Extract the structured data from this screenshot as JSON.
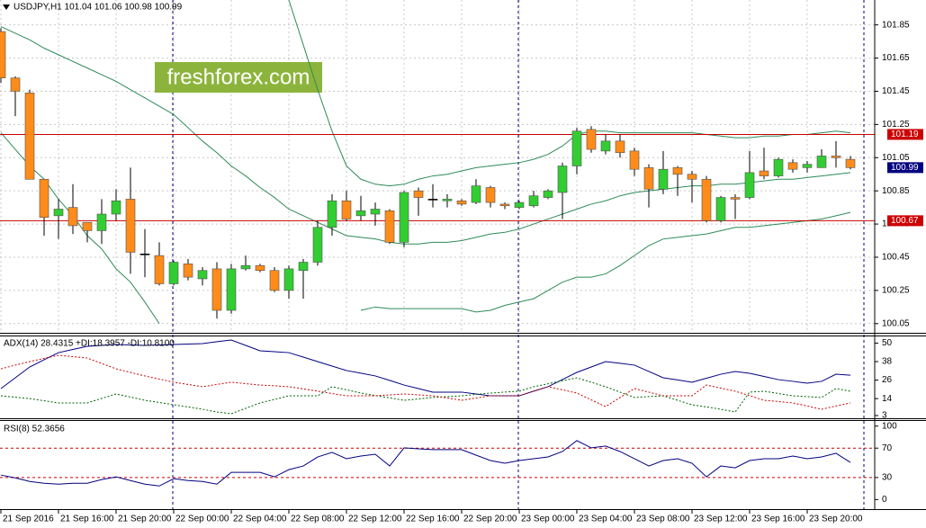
{
  "chart_data": [
    {
      "type": "candlestick",
      "title": "USDJPY,H1  101.04 101.06 100.98 100.99",
      "watermark": "freshforex.com",
      "categories": [
        "21 Sep 2016",
        null,
        null,
        null,
        "21 Sep 16:00",
        null,
        null,
        null,
        "21 Sep 20:00",
        null,
        null,
        null,
        "22 Sep 00:00",
        null,
        null,
        null,
        "22 Sep 04:00",
        null,
        null,
        null,
        "22 Sep 08:00",
        null,
        null,
        null,
        "22 Sep 12:00",
        null,
        null,
        null,
        "22 Sep 16:00",
        null,
        null,
        null,
        "22 Sep 20:00",
        null,
        null,
        null,
        "23 Sep 00:00",
        null,
        null,
        null,
        "23 Sep 04:00",
        null,
        null,
        null,
        "23 Sep 08:00",
        null,
        null,
        null,
        "23 Sep 12:00",
        null,
        null,
        null,
        "23 Sep 16:00",
        null,
        null,
        null,
        "23 Sep 20:00",
        null,
        null,
        null
      ],
      "open": [
        101.81,
        101.53,
        101.44,
        100.92,
        100.7,
        100.75,
        100.66,
        100.61,
        100.71,
        100.8,
        100.47,
        100.46,
        100.29,
        100.41,
        100.32,
        100.38,
        100.13,
        100.38,
        100.4,
        100.37,
        100.25,
        100.37,
        100.42,
        100.63,
        100.79,
        100.7,
        100.71,
        100.73,
        100.54,
        100.85,
        100.8,
        100.79,
        100.79,
        100.78,
        100.87,
        100.77,
        100.75,
        100.76,
        100.81,
        100.84,
        101.0,
        101.22,
        101.09,
        101.15,
        101.09,
        100.99,
        100.86,
        100.99,
        100.95,
        100.92,
        100.67,
        100.81,
        100.81,
        100.97,
        100.94,
        101.02,
        100.99,
        100.99,
        101.06,
        101.04
      ],
      "high": [
        101.83,
        101.54,
        101.46,
        100.92,
        100.8,
        100.89,
        100.66,
        100.8,
        100.86,
        100.99,
        100.62,
        100.54,
        100.43,
        100.44,
        100.39,
        100.42,
        100.41,
        100.46,
        100.41,
        100.39,
        100.4,
        100.44,
        100.67,
        100.83,
        100.85,
        100.82,
        100.78,
        100.74,
        100.85,
        100.87,
        100.89,
        100.83,
        100.8,
        100.92,
        100.88,
        100.78,
        100.79,
        100.85,
        100.86,
        101.02,
        101.23,
        101.24,
        101.19,
        101.19,
        101.11,
        101.01,
        101.09,
        101.0,
        100.97,
        100.94,
        100.82,
        100.83,
        101.09,
        101.11,
        101.05,
        101.04,
        101.03,
        101.1,
        101.15,
        101.06
      ],
      "low": [
        101.5,
        101.3,
        100.92,
        100.58,
        100.56,
        100.59,
        100.54,
        100.53,
        100.67,
        100.35,
        100.33,
        100.28,
        100.28,
        100.31,
        100.28,
        100.08,
        100.11,
        100.37,
        100.36,
        100.24,
        100.2,
        100.2,
        100.4,
        100.58,
        100.67,
        100.67,
        100.64,
        100.53,
        100.51,
        100.7,
        100.75,
        100.75,
        100.76,
        100.77,
        100.75,
        100.74,
        100.74,
        100.75,
        100.8,
        100.68,
        100.95,
        101.08,
        101.07,
        101.05,
        100.94,
        100.75,
        100.83,
        100.82,
        100.78,
        100.66,
        100.66,
        100.68,
        100.8,
        100.92,
        100.93,
        100.96,
        100.96,
        100.99,
        100.99,
        100.98
      ],
      "close": [
        101.53,
        101.45,
        100.92,
        100.69,
        100.74,
        100.64,
        100.61,
        100.71,
        100.79,
        100.48,
        100.47,
        100.29,
        100.42,
        100.33,
        100.37,
        100.13,
        100.38,
        100.4,
        100.37,
        100.25,
        100.38,
        100.42,
        100.63,
        100.79,
        100.68,
        100.73,
        100.74,
        100.54,
        100.84,
        100.81,
        100.8,
        100.8,
        100.77,
        100.88,
        100.78,
        100.76,
        100.78,
        100.82,
        100.85,
        101.0,
        101.21,
        101.1,
        101.15,
        101.08,
        100.98,
        100.86,
        100.98,
        100.95,
        100.92,
        100.67,
        100.81,
        100.8,
        100.96,
        100.94,
        101.04,
        100.98,
        101.01,
        101.06,
        101.05,
        100.99
      ],
      "up_color": "#32cd32",
      "down_color": "#ff8c1a",
      "wick_color": "#000000",
      "bands": [
        {
          "color": "#2e8b57",
          "values": [
            null,
            null,
            null,
            null,
            null,
            null,
            null,
            null,
            null,
            null,
            null,
            null,
            null,
            null,
            null,
            null,
            null,
            null,
            null,
            null,
            102.0,
            101.73,
            101.46,
            101.21,
            101.0,
            100.92,
            100.89,
            100.88,
            100.89,
            100.92,
            100.94,
            100.95,
            100.97,
            100.99,
            101.0,
            101.01,
            101.02,
            101.04,
            101.07,
            101.12,
            101.19,
            101.21,
            101.21,
            101.2,
            101.2,
            101.2,
            101.2,
            101.2,
            101.2,
            101.19,
            101.18,
            101.17,
            101.17,
            101.18,
            101.18,
            101.19,
            101.19,
            101.2,
            101.21,
            101.2
          ]
        },
        {
          "color": "#2e8b57",
          "values": [
            101.84,
            101.8,
            101.76,
            101.71,
            101.67,
            101.63,
            101.59,
            101.55,
            101.51,
            101.46,
            101.41,
            101.36,
            101.31,
            101.23,
            101.15,
            101.08,
            101.0,
            100.94,
            100.87,
            100.81,
            100.74,
            100.7,
            100.66,
            100.62,
            100.58,
            100.57,
            100.56,
            100.54,
            100.53,
            100.53,
            100.54,
            100.54,
            100.55,
            100.57,
            100.59,
            100.6,
            100.62,
            100.65,
            100.68,
            100.71,
            100.74,
            100.77,
            100.79,
            100.82,
            100.84,
            100.85,
            100.86,
            100.87,
            100.88,
            100.88,
            100.89,
            100.89,
            100.9,
            100.91,
            100.92,
            100.92,
            100.93,
            100.94,
            100.95,
            100.96
          ]
        },
        {
          "color": "#2e8b57",
          "values": [
            101.2,
            101.1,
            101.0,
            100.92,
            100.8,
            100.7,
            100.58,
            100.5,
            100.38,
            100.3,
            100.18,
            100.05,
            null,
            null,
            null,
            null,
            null,
            null,
            null,
            null,
            null,
            null,
            null,
            null,
            null,
            100.13,
            100.15,
            100.14,
            100.14,
            100.14,
            100.14,
            100.14,
            100.14,
            100.12,
            100.13,
            100.16,
            100.18,
            100.2,
            100.25,
            100.3,
            100.33,
            100.33,
            100.35,
            100.4,
            100.46,
            100.52,
            100.56,
            100.57,
            100.58,
            100.59,
            100.61,
            100.63,
            100.63,
            100.64,
            100.65,
            100.66,
            100.67,
            100.68,
            100.7,
            100.72
          ]
        }
      ],
      "hlines": [
        {
          "value": 101.19,
          "color": "#cc0000"
        },
        {
          "value": 100.67,
          "color": "#cc0000"
        }
      ],
      "last_price": 100.99,
      "last_price_color": "#000080",
      "ylim": [
        100.0,
        102.0
      ],
      "yticks": [
        101.85,
        101.65,
        101.45,
        101.25,
        101.05,
        100.85,
        100.65,
        100.45,
        100.25,
        100.05
      ],
      "grid": true
    },
    {
      "type": "line",
      "title": "ADX(14) 28.4315 +DI:18.3957 -DI:10.8100",
      "series": [
        {
          "color": "#000080",
          "dashed": false,
          "values": [
            20.5,
            27.5,
            34.5,
            39.2,
            43.8,
            45.9,
            47.9,
            48.5,
            49.1,
            48.8,
            48.5,
            48.8,
            49.1,
            49.4,
            49.7,
            50.9,
            52.0,
            48.5,
            45.0,
            44.4,
            43.8,
            40.9,
            38.0,
            35.1,
            32.2,
            30.5,
            28.7,
            25.8,
            22.8,
            20.5,
            18.2,
            18.2,
            18.2,
            17.0,
            15.8,
            15.8,
            15.8,
            18.8,
            21.7,
            26.4,
            31.0,
            34.5,
            38.0,
            36.9,
            35.7,
            31.6,
            27.5,
            26.1,
            24.6,
            27.2,
            29.8,
            31.6,
            30.4,
            28.4,
            26.3,
            25.2,
            24.0,
            25.2,
            29.8,
            29.2
          ]
        },
        {
          "color": "#006400",
          "dashed": true,
          "values": [
            15.8,
            14.9,
            14.0,
            12.6,
            11.2,
            11.2,
            11.2,
            14.1,
            17.0,
            15.0,
            12.9,
            11.5,
            10.0,
            8.6,
            7.1,
            5.3,
            4.2,
            7.7,
            11.2,
            13.5,
            15.8,
            15.8,
            15.8,
            21.7,
            19.7,
            17.6,
            16.0,
            14.5,
            12.9,
            13.8,
            14.7,
            15.3,
            15.8,
            16.7,
            17.6,
            18.2,
            18.8,
            21.7,
            23.6,
            25.6,
            27.5,
            24.6,
            21.7,
            18.2,
            14.7,
            15.3,
            15.8,
            12.9,
            10.0,
            8.6,
            7.1,
            5.3,
            18.2,
            18.8,
            17.3,
            15.8,
            15.3,
            14.7,
            20.5,
            18.8
          ]
        },
        {
          "color": "#cc0000",
          "dashed": true,
          "values": [
            33.3,
            35.7,
            38.0,
            40.1,
            42.1,
            41.2,
            40.3,
            36.8,
            33.3,
            31.0,
            28.7,
            26.7,
            24.6,
            23.2,
            21.7,
            23.2,
            24.6,
            23.7,
            22.8,
            22.3,
            21.7,
            20.3,
            18.8,
            17.3,
            15.8,
            15.8,
            15.8,
            16.4,
            17.0,
            16.4,
            15.8,
            14.4,
            12.9,
            14.4,
            15.8,
            15.8,
            15.8,
            18.8,
            21.7,
            19.7,
            17.6,
            13.2,
            8.8,
            14.7,
            20.5,
            18.2,
            15.8,
            15.8,
            15.8,
            22.8,
            20.8,
            18.8,
            15.9,
            12.9,
            12.1,
            11.2,
            9.2,
            7.1,
            9.2,
            11.2
          ]
        }
      ],
      "ylim": [
        3,
        52
      ],
      "yticks": [
        50,
        38,
        26,
        14,
        3
      ]
    },
    {
      "type": "line",
      "title": "RSI(8) 52.3656",
      "series": [
        {
          "color": "#000080",
          "dashed": false,
          "values": [
            33.3,
            29.6,
            24.7,
            22.2,
            21.0,
            22.2,
            22.2,
            27.2,
            30.9,
            25.9,
            21.0,
            18.5,
            28.4,
            25.9,
            24.7,
            21.0,
            37.0,
            37.0,
            37.0,
            30.9,
            40.7,
            45.7,
            58.0,
            64.2,
            55.6,
            59.3,
            61.7,
            45.7,
            70.4,
            69.1,
            67.9,
            67.9,
            67.9,
            60.5,
            53.1,
            49.4,
            53.1,
            55.6,
            58.0,
            65.4,
            80.2,
            70.4,
            72.8,
            65.4,
            55.6,
            45.7,
            53.1,
            55.6,
            49.4,
            30.9,
            45.7,
            43.2,
            53.1,
            55.6,
            55.6,
            59.3,
            55.6,
            58.0,
            63.0,
            50.6
          ]
        }
      ],
      "levels": [
        70,
        30
      ],
      "level_color": "#cc0000",
      "ylim": [
        -13,
        107
      ],
      "yticks": [
        100,
        70,
        30,
        0
      ]
    }
  ]
}
